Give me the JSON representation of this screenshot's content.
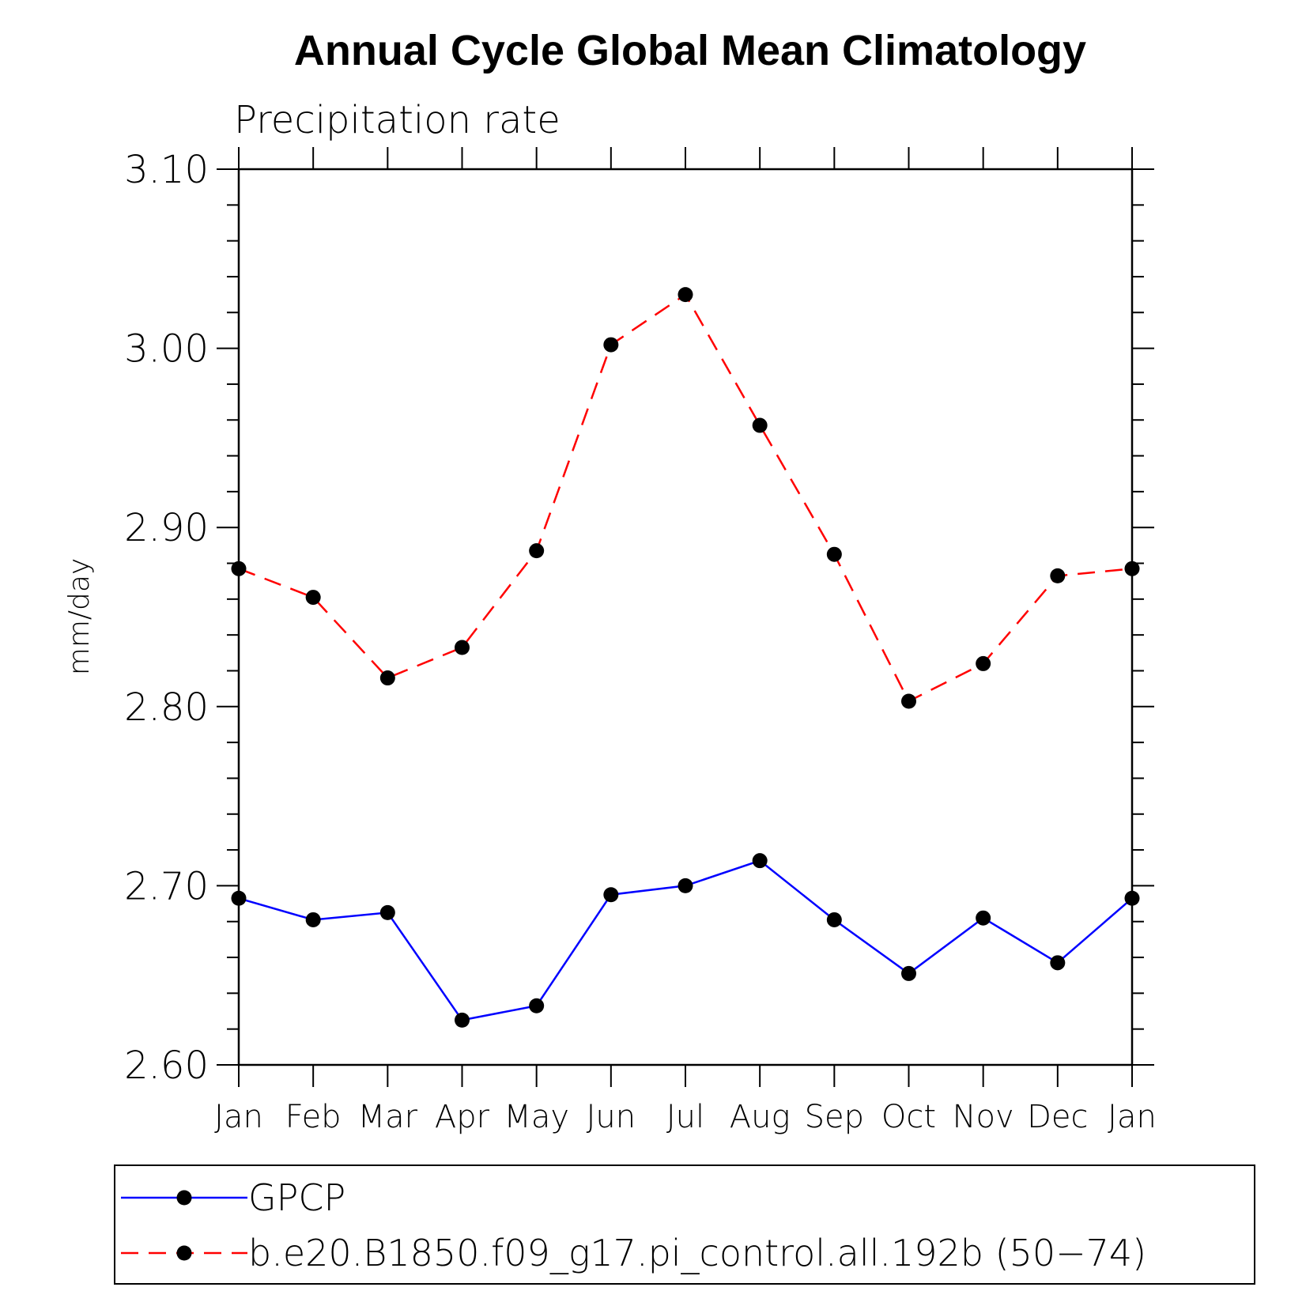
{
  "chart_data": {
    "type": "line",
    "title": "Annual Cycle Global Mean Climatology",
    "subtitle": "Precipitation rate",
    "xlabel": "",
    "ylabel": "mm/day",
    "categories": [
      "Jan",
      "Feb",
      "Mar",
      "Apr",
      "May",
      "Jun",
      "Jul",
      "Aug",
      "Sep",
      "Oct",
      "Nov",
      "Dec",
      "Jan"
    ],
    "ylim": [
      2.6,
      3.1
    ],
    "yticks": [
      "2.60",
      "2.70",
      "2.80",
      "2.90",
      "3.00",
      "3.10"
    ],
    "grid": false,
    "legend_position": "bottom",
    "series": [
      {
        "name": "GPCP",
        "color": "#0000ff",
        "line_style": "solid",
        "marker": "filled-circle",
        "values": [
          2.693,
          2.681,
          2.685,
          2.625,
          2.633,
          2.695,
          2.7,
          2.714,
          2.681,
          2.651,
          2.682,
          2.657,
          2.693
        ]
      },
      {
        "name": "b.e20.B1850.f09_g17.pi_control.all.192b (50−74)",
        "color": "#ff0000",
        "line_style": "dashed",
        "marker": "filled-circle",
        "values": [
          2.877,
          2.861,
          2.816,
          2.833,
          2.887,
          3.002,
          3.03,
          2.957,
          2.885,
          2.803,
          2.824,
          2.873,
          2.877
        ]
      }
    ]
  }
}
